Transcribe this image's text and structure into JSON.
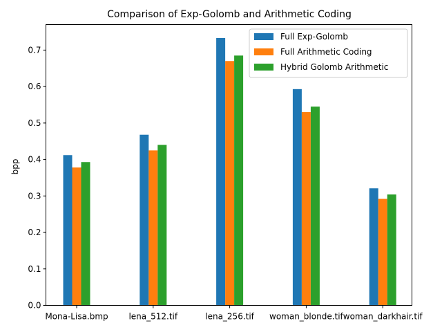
{
  "chart_data": {
    "type": "bar",
    "title": "Comparison of Exp-Golomb and Arithmetic Coding",
    "xlabel": "",
    "ylabel": "bpp",
    "categories": [
      "Mona-Lisa.bmp",
      "lena_512.tif",
      "lena_256.tif",
      "woman_blonde.tif",
      "woman_darkhair.tif"
    ],
    "series": [
      {
        "name": "Full Exp-Golomb",
        "color": "#1f77b4",
        "values": [
          0.412,
          0.468,
          0.733,
          0.593,
          0.321
        ]
      },
      {
        "name": "Full Arithmetic Coding",
        "color": "#ff7f0e",
        "values": [
          0.378,
          0.425,
          0.67,
          0.53,
          0.292
        ]
      },
      {
        "name": "Hybrid Golomb Arithmetic",
        "color": "#2ca02c",
        "values": [
          0.393,
          0.44,
          0.685,
          0.545,
          0.304
        ]
      }
    ],
    "ylim": [
      0,
      0.77
    ],
    "yticks": [
      "0.0",
      "0.1",
      "0.2",
      "0.3",
      "0.4",
      "0.5",
      "0.6",
      "0.7"
    ],
    "grid": false,
    "legend_position": "top-right"
  }
}
